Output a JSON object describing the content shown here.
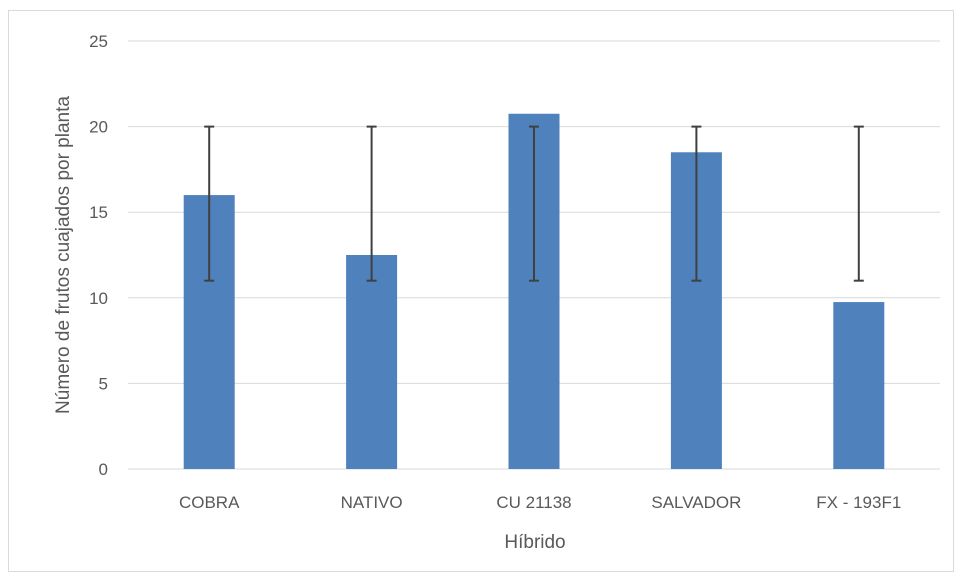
{
  "chart_data": {
    "type": "bar",
    "title": "",
    "xlabel": "Híbrido",
    "ylabel": "Número de frutos cuajados por planta",
    "categories": [
      "COBRA",
      "NATIVO",
      "CU 21138",
      "SALVADOR",
      "FX - 193F1"
    ],
    "values": [
      16.0,
      12.5,
      20.75,
      18.5,
      9.75
    ],
    "error_bars": [
      {
        "low": 11.0,
        "high": 20.0
      },
      {
        "low": 11.0,
        "high": 20.0
      },
      {
        "low": 11.0,
        "high": 20.0
      },
      {
        "low": 11.0,
        "high": 20.0
      },
      {
        "low": 11.0,
        "high": 20.0
      }
    ],
    "ylim": [
      0,
      25
    ],
    "yticks": [
      "0",
      "5",
      "10",
      "15",
      "20",
      "25"
    ],
    "ytick_values": [
      0,
      5,
      10,
      15,
      20,
      25
    ],
    "grid": true,
    "legend": "none",
    "bar_color": "#4f81bd",
    "error_color": "#404040",
    "grid_color": "#d9d9d9"
  }
}
